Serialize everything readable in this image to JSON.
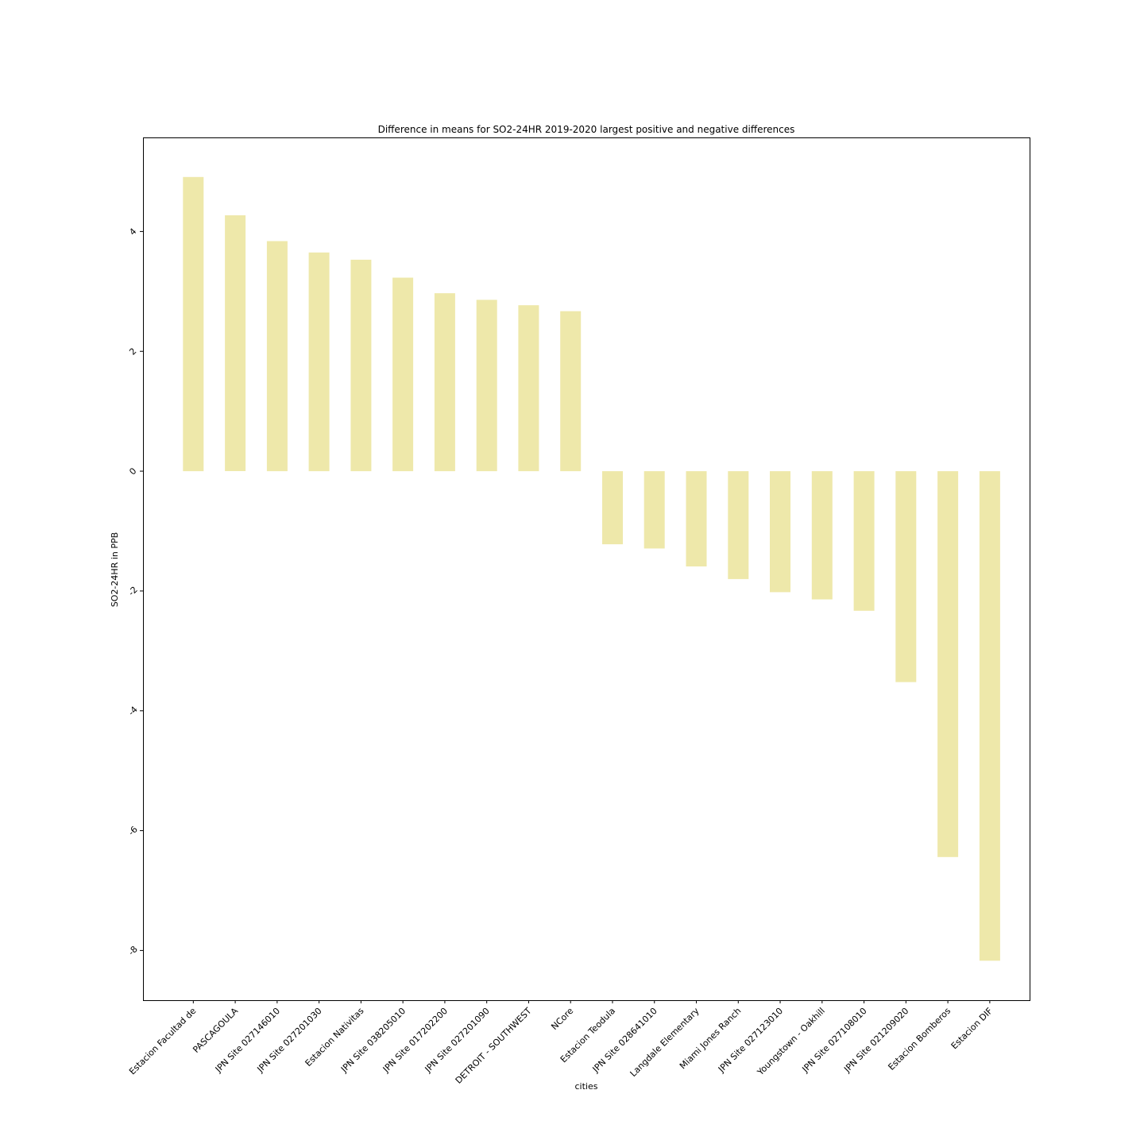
{
  "chart_data": {
    "type": "bar",
    "title": "Difference in means for SO2-24HR 2019-2020 largest positive and negative differences",
    "xlabel": "cities",
    "ylabel": "SO2-24HR in PPB",
    "categories": [
      "Estacion Facultad de",
      "PASCAGOULA",
      "JPN Site 027146010",
      "JPN Site 027201030",
      "Estacion Nativitas",
      "JPN Site 038205010",
      "JPN Site 017202200",
      "JPN Site 027201090",
      "DETROIT - SOUTHWEST",
      "NCore",
      "Estacion Teodula",
      "JPN Site 028641010",
      "Langdale Elementary",
      "Miami Jones Ranch",
      "JPN Site 027123010",
      "Youngstown - Oakhill",
      "JPN Site 027108010",
      "JPN Site 021209020",
      "Estacion Bomberos",
      "Estacion DIF"
    ],
    "values": [
      4.91,
      4.27,
      3.84,
      3.65,
      3.53,
      3.23,
      2.97,
      2.86,
      2.77,
      2.67,
      -1.22,
      -1.29,
      -1.59,
      -1.8,
      -2.02,
      -2.14,
      -2.33,
      -3.52,
      -6.44,
      -8.17
    ],
    "yticks": [
      4,
      2,
      0,
      -2,
      -4,
      -6,
      -8
    ],
    "ylim": [
      -8.83,
      5.57
    ],
    "bar_color": "#eee8aa",
    "grid": false,
    "legend": "none"
  }
}
